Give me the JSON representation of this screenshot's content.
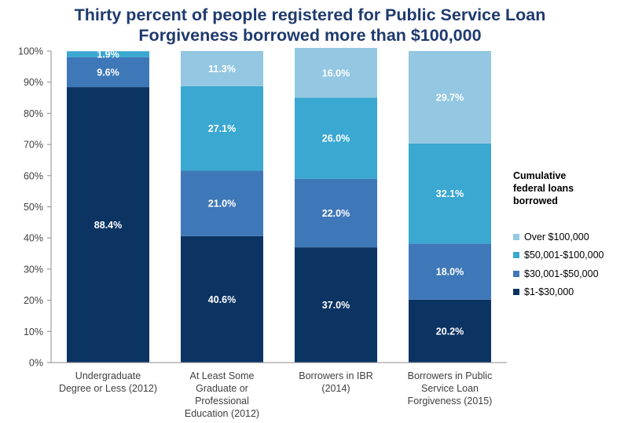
{
  "chart_data": {
    "type": "bar",
    "stacked": true,
    "title_lines": [
      "Thirty percent of people registered for Public Service Loan",
      "Forgiveness borrowed more than $100,000"
    ],
    "categories": [
      [
        "Undergraduate",
        "Degree or Less (2012)"
      ],
      [
        "At Least Some",
        "Graduate or",
        "Professional",
        "Education (2012)"
      ],
      [
        "Borrowers in IBR",
        "(2014)"
      ],
      [
        "Borrowers in Public",
        "Service Loan",
        "Forgiveness (2015)"
      ]
    ],
    "series": [
      {
        "name": "$1-$30,000",
        "color": "#0b3463",
        "values": [
          88.4,
          40.6,
          37.0,
          20.2
        ],
        "labels": [
          "88.4%",
          "40.6%",
          "37.0%",
          "20.2%"
        ]
      },
      {
        "name": "$30,001-$50,000",
        "color": "#3f78b8",
        "values": [
          9.6,
          21.0,
          22.0,
          18.0
        ],
        "labels": [
          "9.6%",
          "21.0%",
          "22.0%",
          "18.0%"
        ]
      },
      {
        "name": "$50,001-$100,000",
        "color": "#3aa8d1",
        "values": [
          1.9,
          27.1,
          26.0,
          32.1
        ],
        "labels": [
          "1.9%",
          "27.1%",
          "26.0%",
          "32.1%"
        ]
      },
      {
        "name": "Over $100,000",
        "color": "#93c7e2",
        "values": [
          0.1,
          11.3,
          16.0,
          29.7
        ],
        "labels": [
          "",
          "11.3%",
          "16.0%",
          "29.7%"
        ]
      }
    ],
    "y_ticks": [
      "0%",
      "10%",
      "20%",
      "30%",
      "40%",
      "50%",
      "60%",
      "70%",
      "80%",
      "90%",
      "100%"
    ],
    "ylim": [
      0,
      100
    ],
    "legend_title": [
      "Cumulative",
      "federal loans",
      "borrowed"
    ],
    "legend_position": "right",
    "grid": false
  }
}
